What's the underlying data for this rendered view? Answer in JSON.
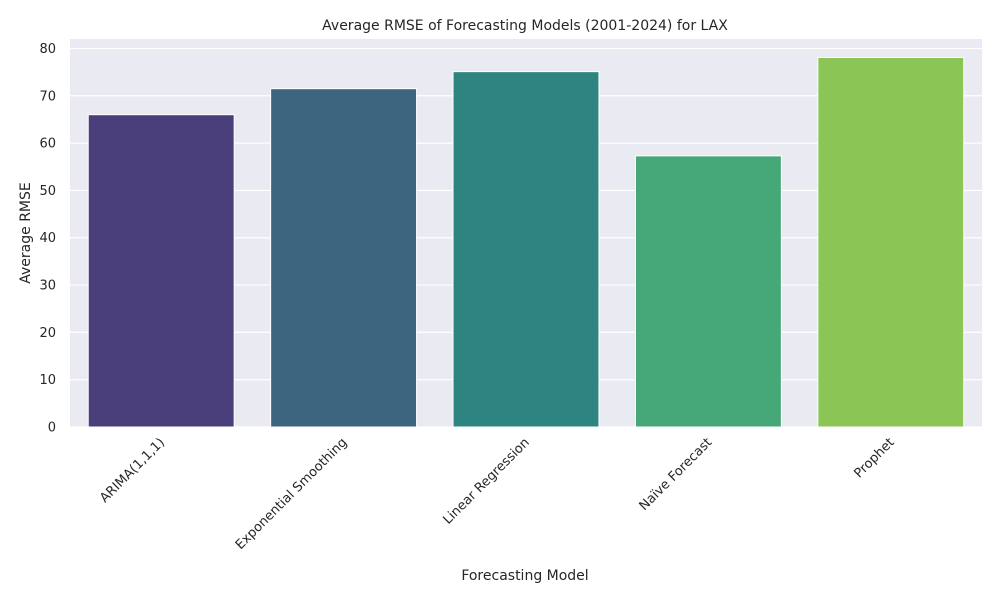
{
  "chart_data": {
    "type": "bar",
    "title": "Average RMSE of Forecasting Models (2001-2024) for LAX",
    "xlabel": "Forecasting Model",
    "ylabel": "Average RMSE",
    "categories": [
      "ARIMA(1,1,1)",
      "Exponential Smoothing",
      "Linear Regression",
      "Naïve Forecast",
      "Prophet"
    ],
    "values": [
      66.0,
      71.5,
      75.1,
      57.3,
      78.1
    ],
    "colors": [
      "#4a3f7a",
      "#3e657f",
      "#2e857f",
      "#46a878",
      "#8bc556"
    ],
    "ylim": [
      0,
      82
    ],
    "yticks": [
      0,
      10,
      20,
      30,
      40,
      50,
      60,
      70,
      80
    ],
    "grid": true,
    "background": "#eaeaf2",
    "xtick_rotation": 45
  }
}
